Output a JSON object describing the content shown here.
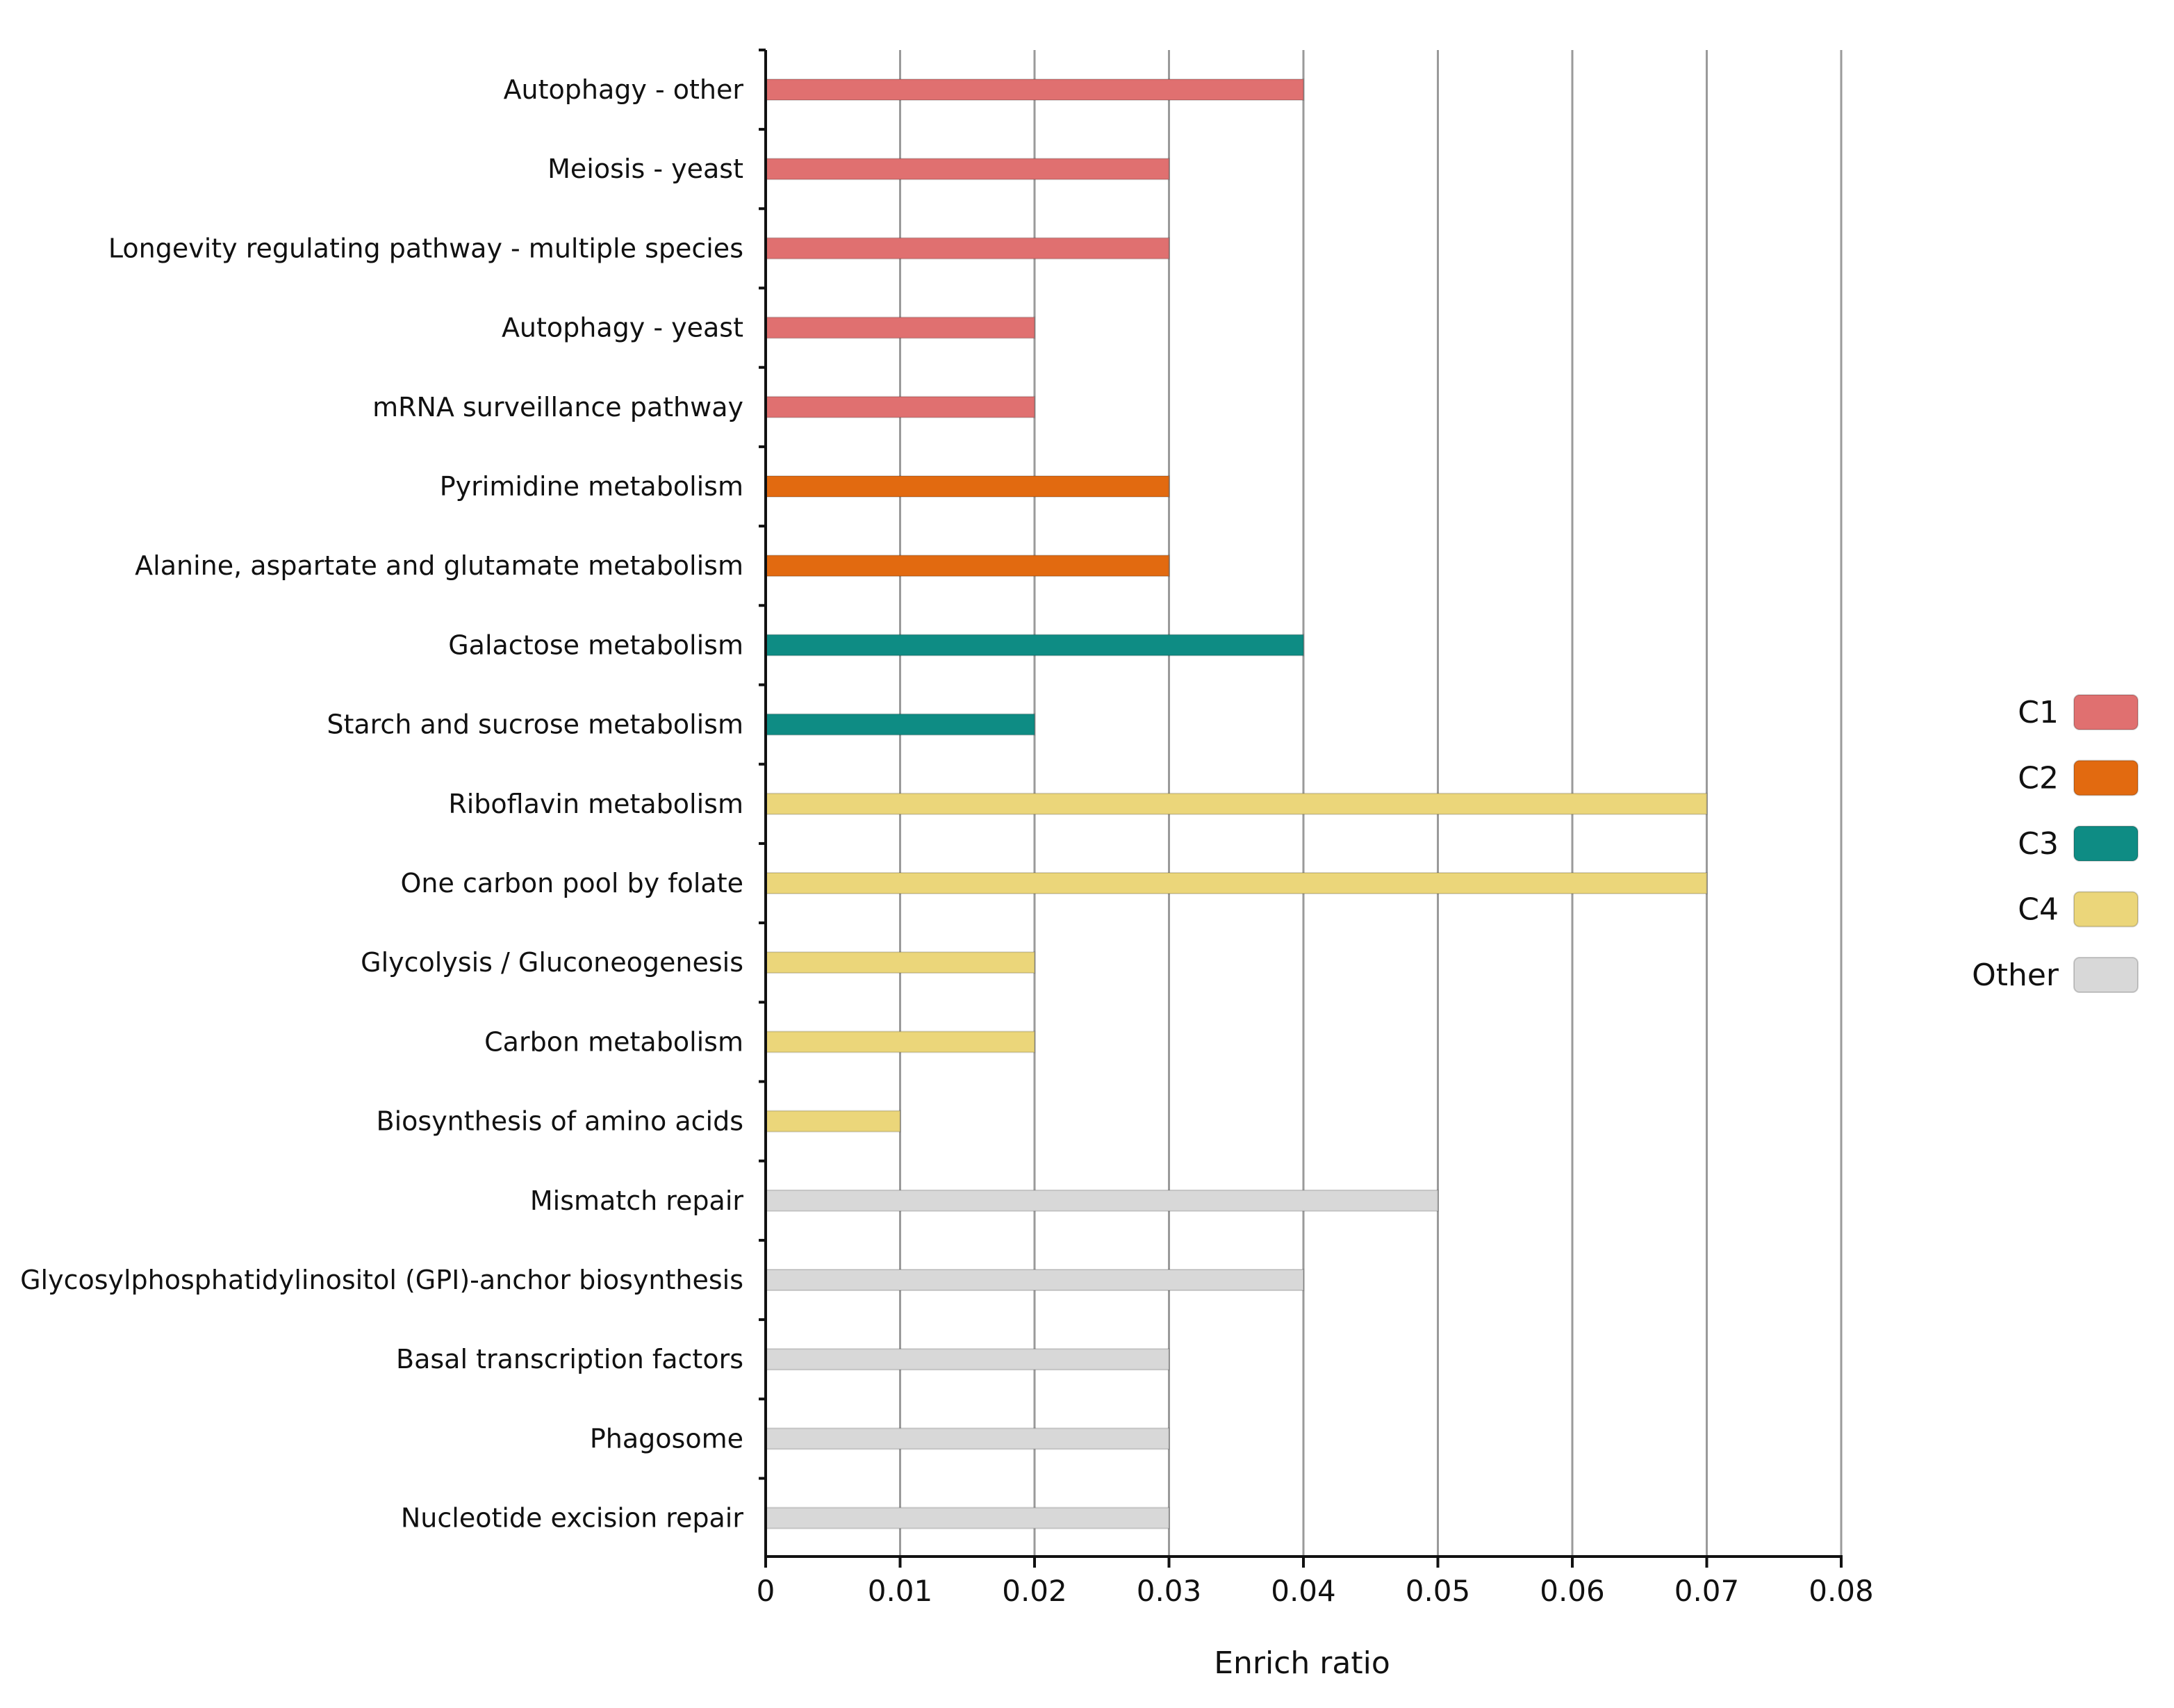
{
  "chart_data": {
    "type": "bar",
    "orientation": "horizontal",
    "title": "",
    "xlabel": "Enrich ratio",
    "ylabel": "",
    "xlim": [
      0,
      0.08
    ],
    "x_ticks": [
      "0",
      "0.01",
      "0.02",
      "0.03",
      "0.04",
      "0.05",
      "0.06",
      "0.07",
      "0.08"
    ],
    "grid": "vertical",
    "legend_position": "right",
    "groups": [
      {
        "name": "C1",
        "color": "#E07070"
      },
      {
        "name": "C2",
        "color": "#E26A10"
      },
      {
        "name": "C3",
        "color": "#0E8C84"
      },
      {
        "name": "C4",
        "color": "#EBD67A"
      },
      {
        "name": "Other",
        "color": "#D8D8D8"
      }
    ],
    "bars": [
      {
        "label": "Autophagy - other",
        "value": 0.04,
        "group": "C1"
      },
      {
        "label": "Meiosis - yeast",
        "value": 0.03,
        "group": "C1"
      },
      {
        "label": "Longevity regulating pathway - multiple species",
        "value": 0.03,
        "group": "C1"
      },
      {
        "label": "Autophagy - yeast",
        "value": 0.02,
        "group": "C1"
      },
      {
        "label": "mRNA surveillance pathway",
        "value": 0.02,
        "group": "C1"
      },
      {
        "label": "Pyrimidine metabolism",
        "value": 0.03,
        "group": "C2"
      },
      {
        "label": "Alanine, aspartate and glutamate metabolism",
        "value": 0.03,
        "group": "C2"
      },
      {
        "label": "Galactose metabolism",
        "value": 0.04,
        "group": "C3"
      },
      {
        "label": "Starch and sucrose metabolism",
        "value": 0.02,
        "group": "C3"
      },
      {
        "label": "Riboflavin metabolism",
        "value": 0.07,
        "group": "C4"
      },
      {
        "label": "One carbon pool by folate",
        "value": 0.07,
        "group": "C4"
      },
      {
        "label": "Glycolysis / Gluconeogenesis",
        "value": 0.02,
        "group": "C4"
      },
      {
        "label": "Carbon metabolism",
        "value": 0.02,
        "group": "C4"
      },
      {
        "label": "Biosynthesis of amino acids",
        "value": 0.01,
        "group": "C4"
      },
      {
        "label": "Mismatch repair",
        "value": 0.05,
        "group": "Other"
      },
      {
        "label": "Glycosylphosphatidylinositol (GPI)-anchor biosynthesis",
        "value": 0.04,
        "group": "Other"
      },
      {
        "label": "Basal transcription factors",
        "value": 0.03,
        "group": "Other"
      },
      {
        "label": "Phagosome",
        "value": 0.03,
        "group": "Other"
      },
      {
        "label": "Nucleotide excision repair",
        "value": 0.03,
        "group": "Other"
      }
    ]
  }
}
